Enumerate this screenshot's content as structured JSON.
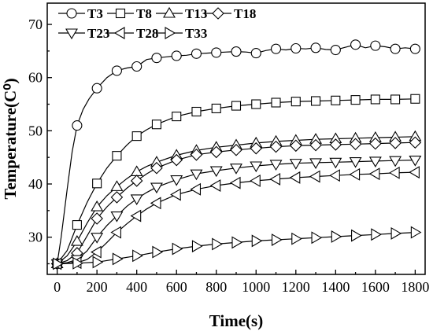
{
  "chart_data": {
    "type": "line",
    "xlabel": "Time(s)",
    "ylabel": "Temperature(C⁰)",
    "xlim": [
      -50,
      1850
    ],
    "ylim": [
      23,
      74
    ],
    "xticks": [
      "0",
      "200",
      "400",
      "600",
      "800",
      "1000",
      "1200",
      "1400",
      "1600",
      "1800"
    ],
    "yticks": [
      "30",
      "40",
      "50",
      "60",
      "70"
    ],
    "legend_position": "top-left",
    "series": [
      {
        "name": "T3",
        "marker": "circle",
        "x": [
          0,
          20,
          50,
          75,
          100,
          130,
          160,
          200,
          250,
          300,
          350,
          400,
          450,
          500,
          550,
          600,
          650,
          700,
          750,
          800,
          850,
          900,
          950,
          1000,
          1050,
          1100,
          1150,
          1200,
          1250,
          1300,
          1350,
          1400,
          1450,
          1500,
          1550,
          1600,
          1650,
          1700,
          1750,
          1800
        ],
        "y": [
          25,
          30,
          39,
          46,
          51,
          54,
          56,
          58,
          60,
          61.3,
          61.8,
          62.1,
          63.4,
          63.7,
          63.9,
          64.1,
          64.2,
          64.5,
          64.6,
          64.7,
          64.8,
          64.9,
          64.8,
          64.6,
          65.1,
          65.4,
          65.2,
          65.5,
          65.4,
          65.6,
          65.3,
          65.2,
          65.7,
          66.2,
          65.6,
          66.0,
          65.8,
          65.4,
          65.6,
          65.4
        ],
        "marker_x": [
          0,
          100,
          200,
          300,
          400,
          500,
          600,
          700,
          800,
          900,
          1000,
          1100,
          1200,
          1300,
          1400,
          1500,
          1600,
          1700,
          1800
        ]
      },
      {
        "name": "T8",
        "marker": "square",
        "x": [
          0,
          50,
          100,
          150,
          200,
          250,
          300,
          350,
          400,
          450,
          500,
          600,
          700,
          800,
          900,
          1000,
          1100,
          1200,
          1300,
          1400,
          1500,
          1600,
          1700,
          1800
        ],
        "y": [
          25,
          27.5,
          32.3,
          36.5,
          40.1,
          43.0,
          45.3,
          47.3,
          49.0,
          50.2,
          51.2,
          52.7,
          53.6,
          54.2,
          54.7,
          55.0,
          55.3,
          55.5,
          55.6,
          55.7,
          55.8,
          55.9,
          55.9,
          56.0
        ],
        "marker_x": [
          0,
          100,
          200,
          300,
          400,
          500,
          600,
          700,
          800,
          900,
          1000,
          1100,
          1200,
          1300,
          1400,
          1500,
          1600,
          1700,
          1800
        ]
      },
      {
        "name": "T13",
        "marker": "triangle-up",
        "x": [
          0,
          50,
          100,
          150,
          200,
          250,
          300,
          350,
          400,
          450,
          500,
          600,
          700,
          800,
          900,
          1000,
          1100,
          1200,
          1300,
          1400,
          1500,
          1600,
          1700,
          1800
        ],
        "y": [
          25,
          26.5,
          29.2,
          32.6,
          35.7,
          37.8,
          39.5,
          41.0,
          42.3,
          43.3,
          44.1,
          45.4,
          46.3,
          46.9,
          47.3,
          47.7,
          48.0,
          48.2,
          48.4,
          48.5,
          48.6,
          48.7,
          48.8,
          48.9
        ],
        "marker_x": [
          0,
          100,
          200,
          300,
          400,
          500,
          600,
          700,
          800,
          900,
          1000,
          1100,
          1200,
          1300,
          1400,
          1500,
          1600,
          1700,
          1800
        ]
      },
      {
        "name": "T18",
        "marker": "diamond",
        "x": [
          0,
          50,
          100,
          150,
          200,
          250,
          300,
          350,
          400,
          450,
          500,
          600,
          700,
          800,
          900,
          1000,
          1100,
          1200,
          1300,
          1400,
          1500,
          1600,
          1700,
          1800
        ],
        "y": [
          25,
          25.6,
          27.0,
          30.2,
          33.5,
          35.7,
          37.5,
          39.2,
          40.6,
          41.9,
          43.0,
          44.5,
          45.5,
          46.0,
          46.4,
          46.7,
          47.0,
          47.2,
          47.3,
          47.4,
          47.5,
          47.6,
          47.7,
          47.8
        ],
        "marker_x": [
          0,
          100,
          200,
          300,
          400,
          500,
          600,
          700,
          800,
          900,
          1000,
          1100,
          1200,
          1300,
          1400,
          1500,
          1600,
          1700,
          1800
        ]
      },
      {
        "name": "T23",
        "marker": "triangle-down",
        "x": [
          0,
          50,
          100,
          150,
          200,
          250,
          300,
          350,
          400,
          450,
          500,
          600,
          700,
          800,
          900,
          1000,
          1100,
          1200,
          1300,
          1400,
          1500,
          1600,
          1700,
          1800
        ],
        "y": [
          25,
          25.2,
          25.8,
          27.4,
          30.0,
          32.2,
          34.0,
          35.8,
          37.2,
          38.4,
          39.4,
          40.8,
          41.9,
          42.5,
          43.0,
          43.4,
          43.7,
          43.9,
          44.0,
          44.1,
          44.2,
          44.3,
          44.4,
          44.5
        ],
        "marker_x": [
          0,
          100,
          200,
          300,
          400,
          500,
          600,
          700,
          800,
          900,
          1000,
          1100,
          1200,
          1300,
          1400,
          1500,
          1600,
          1700,
          1800
        ]
      },
      {
        "name": "T28",
        "marker": "triangle-left",
        "x": [
          0,
          50,
          100,
          150,
          200,
          250,
          300,
          350,
          400,
          450,
          500,
          600,
          700,
          800,
          900,
          1000,
          1100,
          1200,
          1300,
          1400,
          1500,
          1600,
          1700,
          1800
        ],
        "y": [
          25,
          25.1,
          25.2,
          25.8,
          27.2,
          29.0,
          30.9,
          32.5,
          34.0,
          35.3,
          36.4,
          38.0,
          39.0,
          39.7,
          40.2,
          40.6,
          40.9,
          41.2,
          41.4,
          41.6,
          41.8,
          41.9,
          42.1,
          42.2
        ],
        "marker_x": [
          0,
          100,
          200,
          300,
          400,
          500,
          600,
          700,
          800,
          900,
          1000,
          1100,
          1200,
          1300,
          1400,
          1500,
          1600,
          1700,
          1800
        ]
      },
      {
        "name": "T33",
        "marker": "triangle-right",
        "x": [
          0,
          100,
          200,
          300,
          400,
          500,
          600,
          700,
          800,
          900,
          1000,
          1100,
          1200,
          1300,
          1400,
          1500,
          1600,
          1700,
          1800
        ],
        "y": [
          25,
          25.1,
          25.3,
          25.9,
          26.5,
          27.2,
          27.8,
          28.3,
          28.7,
          29.0,
          29.3,
          29.5,
          29.7,
          29.9,
          30.1,
          30.3,
          30.5,
          30.7,
          30.9
        ],
        "marker_x": [
          0,
          100,
          200,
          300,
          400,
          500,
          600,
          700,
          800,
          900,
          1000,
          1100,
          1200,
          1300,
          1400,
          1500,
          1600,
          1700,
          1800
        ]
      }
    ]
  }
}
